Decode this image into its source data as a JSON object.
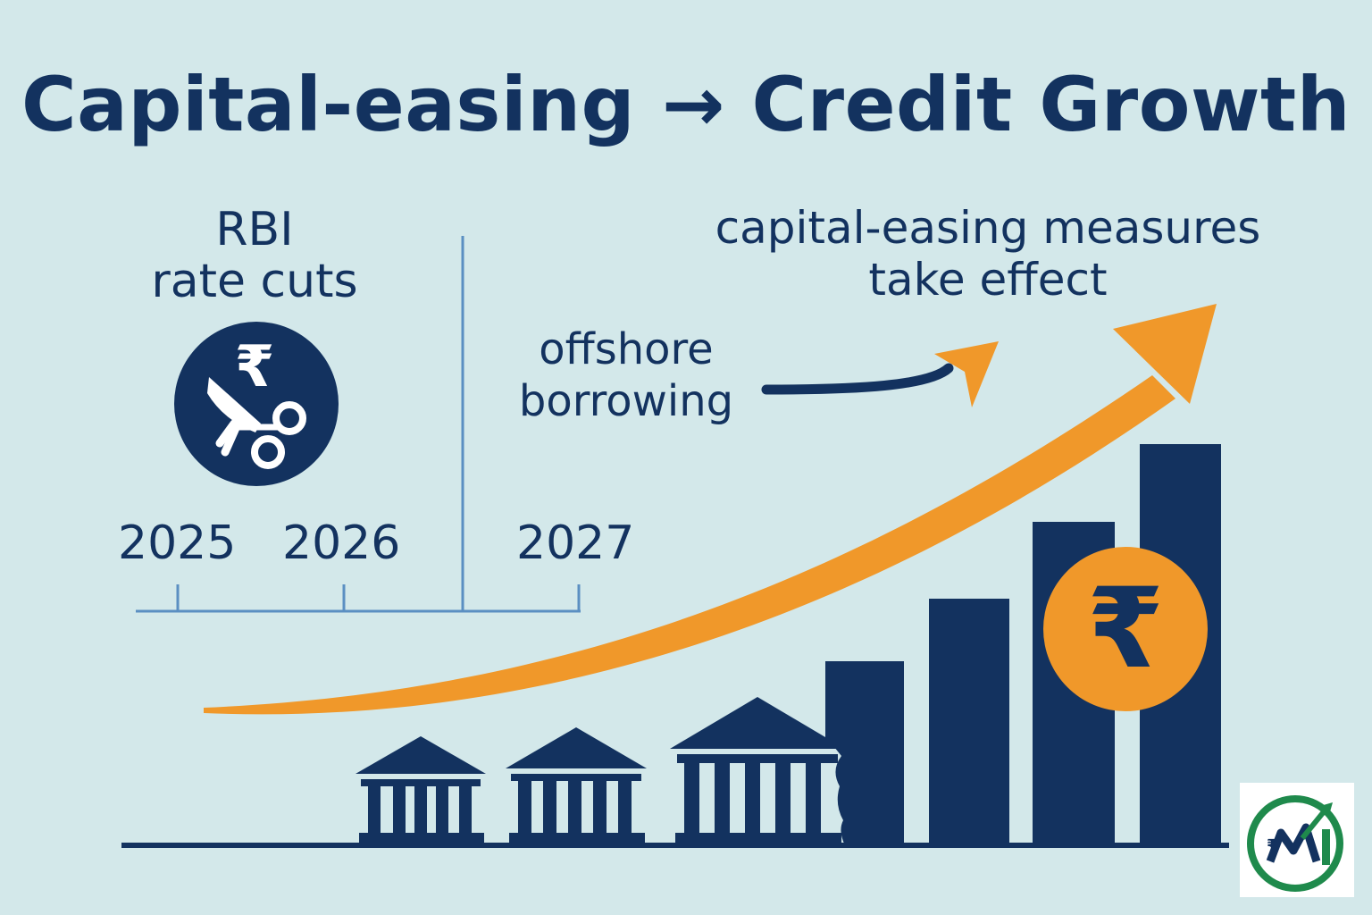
{
  "title": "Capital-easing → Credit Growth",
  "rbi": {
    "line1": "RBI",
    "line2": "rate cuts",
    "icon": "rupee-scissors-icon"
  },
  "timeline": {
    "years": [
      "2025",
      "2026",
      "2027"
    ]
  },
  "offshore": {
    "line1": "offshore",
    "line2": "borrowing"
  },
  "effect": {
    "line1": "capital-easing measures",
    "line2": "take effect"
  },
  "currency_symbol": "₹",
  "logo": {
    "letters": "₹M",
    "icon": "growth-logo-icon"
  },
  "colors": {
    "background": "#d3e8ea",
    "navy": "#13325f",
    "orange": "#f0982a",
    "timeline_blue": "#5b8fc2",
    "logo_green": "#1f8a4c"
  }
}
